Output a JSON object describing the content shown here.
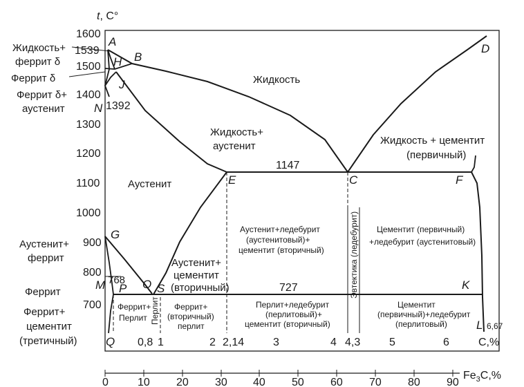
{
  "axis": {
    "y_title_t": "t",
    "y_title_unit": ", C°",
    "y_ticks": [
      "1600",
      "1539",
      "1500",
      "1400",
      "1392",
      "1300",
      "1200",
      "1100",
      "1000",
      "900",
      "800",
      "768",
      "700"
    ],
    "x_top_ticks": [
      "0,8",
      "1",
      "2",
      "2,14",
      "3",
      "4",
      "4,3",
      "5",
      "6"
    ],
    "x_top_title": "C,%",
    "x_bottom_ticks": [
      "0",
      "10",
      "20",
      "30",
      "40",
      "50",
      "60",
      "70",
      "80",
      "90"
    ],
    "x_bottom_title_fe": "Fe",
    "x_bottom_title_sub": "3",
    "x_bottom_title_rest": "C,%"
  },
  "points": {
    "A": "A",
    "B": "B",
    "H": "H",
    "J": "J",
    "N": "N",
    "D": "D",
    "E": "E",
    "C": "C",
    "F": "F",
    "G": "G",
    "P": "P",
    "O": "O",
    "S": "S",
    "M": "M",
    "K": "K",
    "Q": "Q",
    "L": "L"
  },
  "values": {
    "t1147": "1147",
    "t727": "727",
    "c667": "6,67"
  },
  "left_labels": {
    "liquid_delta_1": "Жидкость+",
    "liquid_delta_2": "феррит δ",
    "delta": "Феррит δ",
    "delta_aus_1": "Феррит δ+",
    "delta_aus_2": "аустенит",
    "aus_ferrite_1": "Аустенит+",
    "aus_ferrite_2": "феррит",
    "ferrite": "Феррит",
    "fer_cem_1": "Феррит+",
    "fer_cem_2": "цементит",
    "fer_cem_3": "(третичный)"
  },
  "regions": {
    "liquid": "Жидкость",
    "liquid_aus_1": "Жидкость+",
    "liquid_aus_2": "аустенит",
    "liquid_cem_1": "Жидкость + цементит",
    "liquid_cem_2": "(первичный)",
    "austenite": "Аустенит",
    "aus_cem_1": "Аустенит+",
    "aus_cem_2": "цементит",
    "aus_cem_3": "(вторичный)",
    "aus_led_1": "Аустенит+ледебурит",
    "aus_led_2": "(аустенитовый)+",
    "aus_led_3": "цементит (вторичный)",
    "cem_led_1": "Цементит (первичный)",
    "cem_led_2": "+ледебурит (аустенитовый)",
    "eutectic": "Эвтектика (ледебурит)",
    "fer_per_1": "Феррит+",
    "fer_per_2": "Перлит",
    "perlite": "Перлит",
    "fer_per2_1": "Феррит+",
    "fer_per2_2": "(вторичный)",
    "fer_per2_3": "перлит",
    "per_led_1": "Перлит+ледебурит",
    "per_led_2": "(перлитовый)+",
    "per_led_3": "цементит (вторичный)",
    "cem_per_1": "Цементит",
    "cem_per_2": "(первичный)+ледебурит",
    "cem_per_3": "(перлитовый)"
  }
}
